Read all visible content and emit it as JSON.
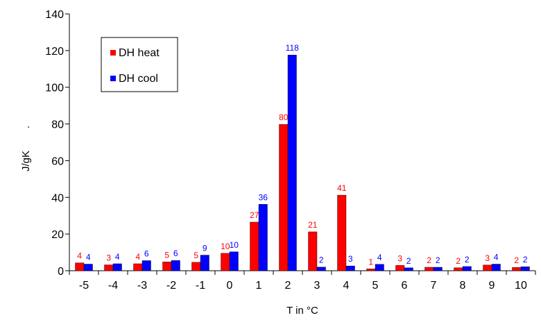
{
  "chart_data": {
    "type": "bar",
    "xlabel": "T in °C",
    "ylabel": "J/gK",
    "ylabel_dot": ".",
    "ylim": [
      0,
      140
    ],
    "yticks": [
      0,
      20,
      40,
      60,
      80,
      100,
      120,
      140
    ],
    "grid": false,
    "legend_position": "top-left",
    "categories": [
      "-5",
      "-4",
      "-3",
      "-2",
      "-1",
      "0",
      "1",
      "2",
      "3",
      "4",
      "5",
      "6",
      "7",
      "8",
      "9",
      "10"
    ],
    "series": [
      {
        "name": "DH heat",
        "color": "#ff0000",
        "values": [
          4.3,
          3.2,
          3.8,
          4.8,
          4.6,
          9.5,
          26.5,
          79.8,
          21.2,
          41.2,
          1.0,
          2.9,
          1.9,
          1.6,
          3.1,
          1.8
        ],
        "labels": [
          "4",
          "3",
          "4",
          "5",
          "5",
          "10",
          "27",
          "80",
          "21",
          "41",
          "1",
          "3",
          "2",
          "2",
          "3",
          "2"
        ]
      },
      {
        "name": "DH cool",
        "color": "#0000ff",
        "values": [
          3.6,
          3.8,
          5.5,
          5.6,
          8.5,
          10.3,
          36.2,
          117.6,
          2.0,
          2.6,
          3.5,
          1.6,
          1.9,
          2.3,
          3.6,
          2.2
        ],
        "labels": [
          "4",
          "4",
          "6",
          "6",
          "9",
          "10",
          "36",
          "118",
          "2",
          "3",
          "4",
          "2",
          "2",
          "2",
          "4",
          "2"
        ]
      }
    ]
  }
}
